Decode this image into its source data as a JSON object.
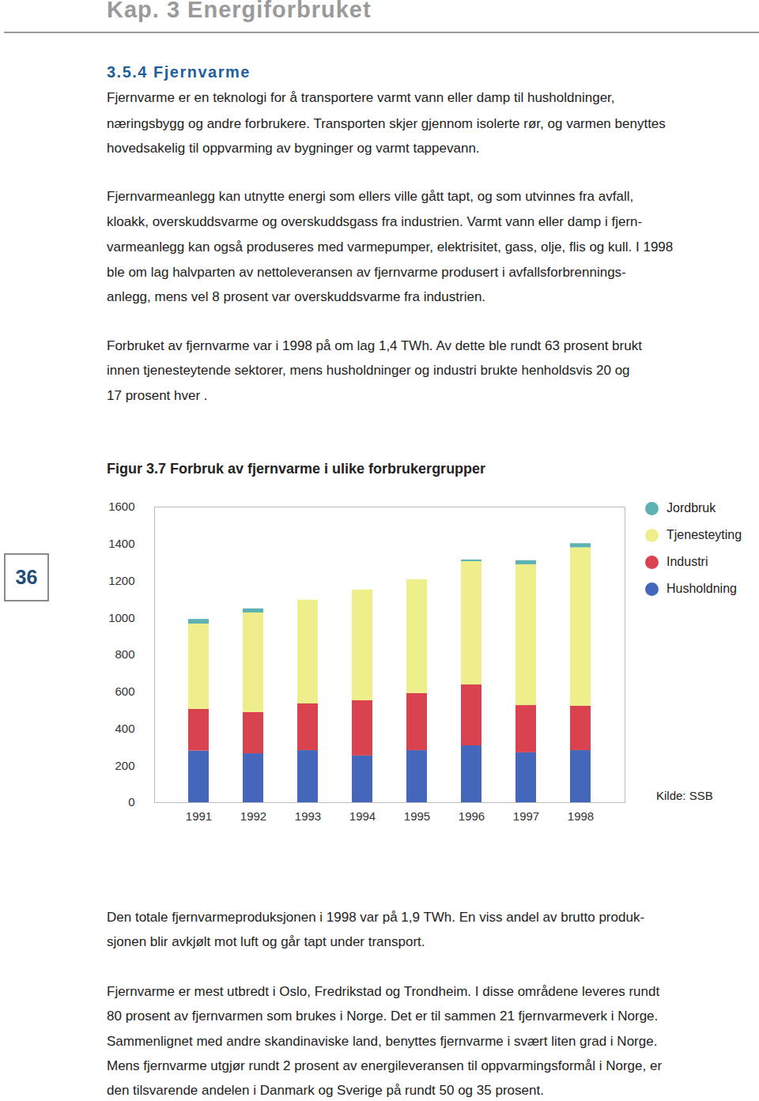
{
  "header": "Kap. 3  Energiforbruket",
  "page_number": "36",
  "section_title": "3.5.4 Fjernvarme",
  "paragraphs_before": [
    [
      "Fjernvarme er en teknologi for å transportere varmt vann eller damp til husholdninger,",
      "næringsbygg og andre forbrukere. Transporten skjer gjennom isolerte rør, og varmen benyttes",
      "hovedsakelig til oppvarming av bygninger og varmt tappevann."
    ],
    [
      "Fjernvarmeanlegg kan utnytte energi som ellers ville gått tapt, og som utvinnes fra avfall,",
      "kloakk, overskuddsvarme og overskuddsgass fra industrien. Varmt vann eller damp i fjern-",
      "varmeanlegg kan også produseres med varmepumper, elektrisitet, gass, olje, flis og kull. I 1998",
      "ble om lag halvparten av nettoleveransen av fjernvarme produsert i avfallsforbrennings-",
      "anlegg, mens vel 8 prosent var overskuddsvarme fra industrien."
    ],
    [
      "Forbruket av fjernvarme var i 1998 på om lag 1,4 TWh. Av dette ble rundt 63 prosent brukt",
      "innen tjenesteytende sektorer, mens husholdninger og industri brukte henholdsvis 20 og",
      "17 prosent hver ."
    ]
  ],
  "paragraphs_after": [
    [
      "Den totale fjernvarmeproduksjonen i 1998 var på 1,9 TWh. En viss andel av brutto produk-",
      "sjonen blir avkjølt mot luft og går tapt under transport."
    ],
    [
      "Fjernvarme er mest utbredt i Oslo, Fredrikstad og Trondheim. I disse områdene leveres rundt",
      "80 prosent av fjernvarmen som brukes i Norge. Det er til sammen 21 fjernvarmeverk i Norge.",
      "Sammenlignet med andre skandinaviske land, benyttes fjernvarme i svært liten grad i Norge.",
      "Mens fjernvarme utgjør rundt 2 prosent av energileveransen til oppvarmingsformål i Norge, er",
      "den tilsvarende andelen i Danmark og Sverige på rundt 50 og 35 prosent."
    ]
  ],
  "chart_data": {
    "type": "bar",
    "stacked": true,
    "title": "Figur 3.7 Forbruk av fjernvarme i ulike forbrukergrupper",
    "annotations": [
      "Kilde: SSB"
    ],
    "legend": "right",
    "grid": false,
    "categories": [
      "1991",
      "1992",
      "1993",
      "1994",
      "1995",
      "1996",
      "1997",
      "1998"
    ],
    "ylim": [
      0,
      1600
    ],
    "yticks": [
      0,
      200,
      400,
      600,
      800,
      1000,
      1200,
      1400,
      1600
    ],
    "series": [
      {
        "name": "Husholdning",
        "color": "#4567bb",
        "values": [
          280,
          265,
          282,
          253,
          282,
          308,
          270,
          282
        ]
      },
      {
        "name": "Industri",
        "color": "#d9434f",
        "values": [
          225,
          223,
          253,
          299,
          309,
          330,
          256,
          240
        ]
      },
      {
        "name": "Tjenesteyting",
        "color": "#eeee8a",
        "values": [
          462,
          539,
          561,
          599,
          616,
          667,
          762,
          858
        ]
      },
      {
        "name": "Jordbruk",
        "color": "#5fb2b2",
        "values": [
          25,
          22,
          0,
          0,
          0,
          9,
          22,
          22
        ]
      }
    ]
  }
}
